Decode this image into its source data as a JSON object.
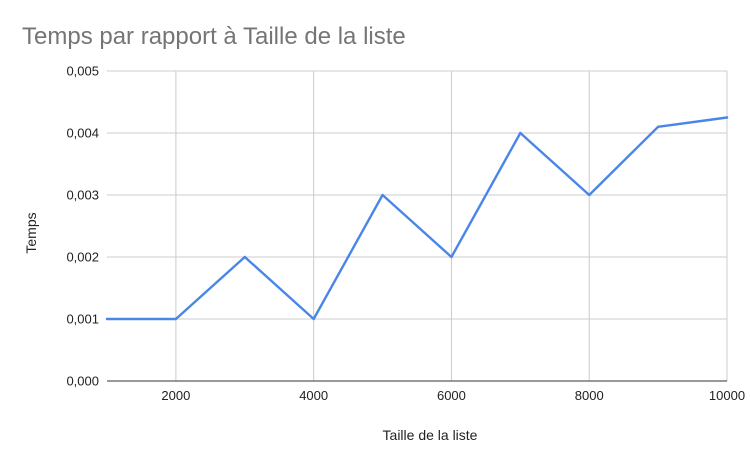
{
  "chart_data": {
    "type": "line",
    "title": "Temps par rapport à Taille de la liste",
    "xlabel": "Taille de la liste",
    "ylabel": "Temps",
    "xlim": [
      1000,
      10000
    ],
    "ylim": [
      0,
      0.005
    ],
    "x_ticks": [
      2000,
      4000,
      6000,
      8000,
      10000
    ],
    "x_tick_labels": [
      "2000",
      "4000",
      "6000",
      "8000",
      "10000"
    ],
    "y_ticks": [
      0,
      0.001,
      0.002,
      0.003,
      0.004,
      0.005
    ],
    "y_tick_labels": [
      "0,000",
      "0,001",
      "0,002",
      "0,003",
      "0,004",
      "0,005"
    ],
    "grid": true,
    "legend": "none",
    "series": [
      {
        "color": "#4a86e8",
        "x": [
          1000,
          2000,
          3000,
          4000,
          5000,
          6000,
          7000,
          8000,
          9000,
          10000
        ],
        "y": [
          0.001,
          0.001,
          0.002,
          0.001,
          0.003,
          0.002,
          0.004,
          0.003,
          0.0041,
          0.00425
        ]
      }
    ]
  }
}
